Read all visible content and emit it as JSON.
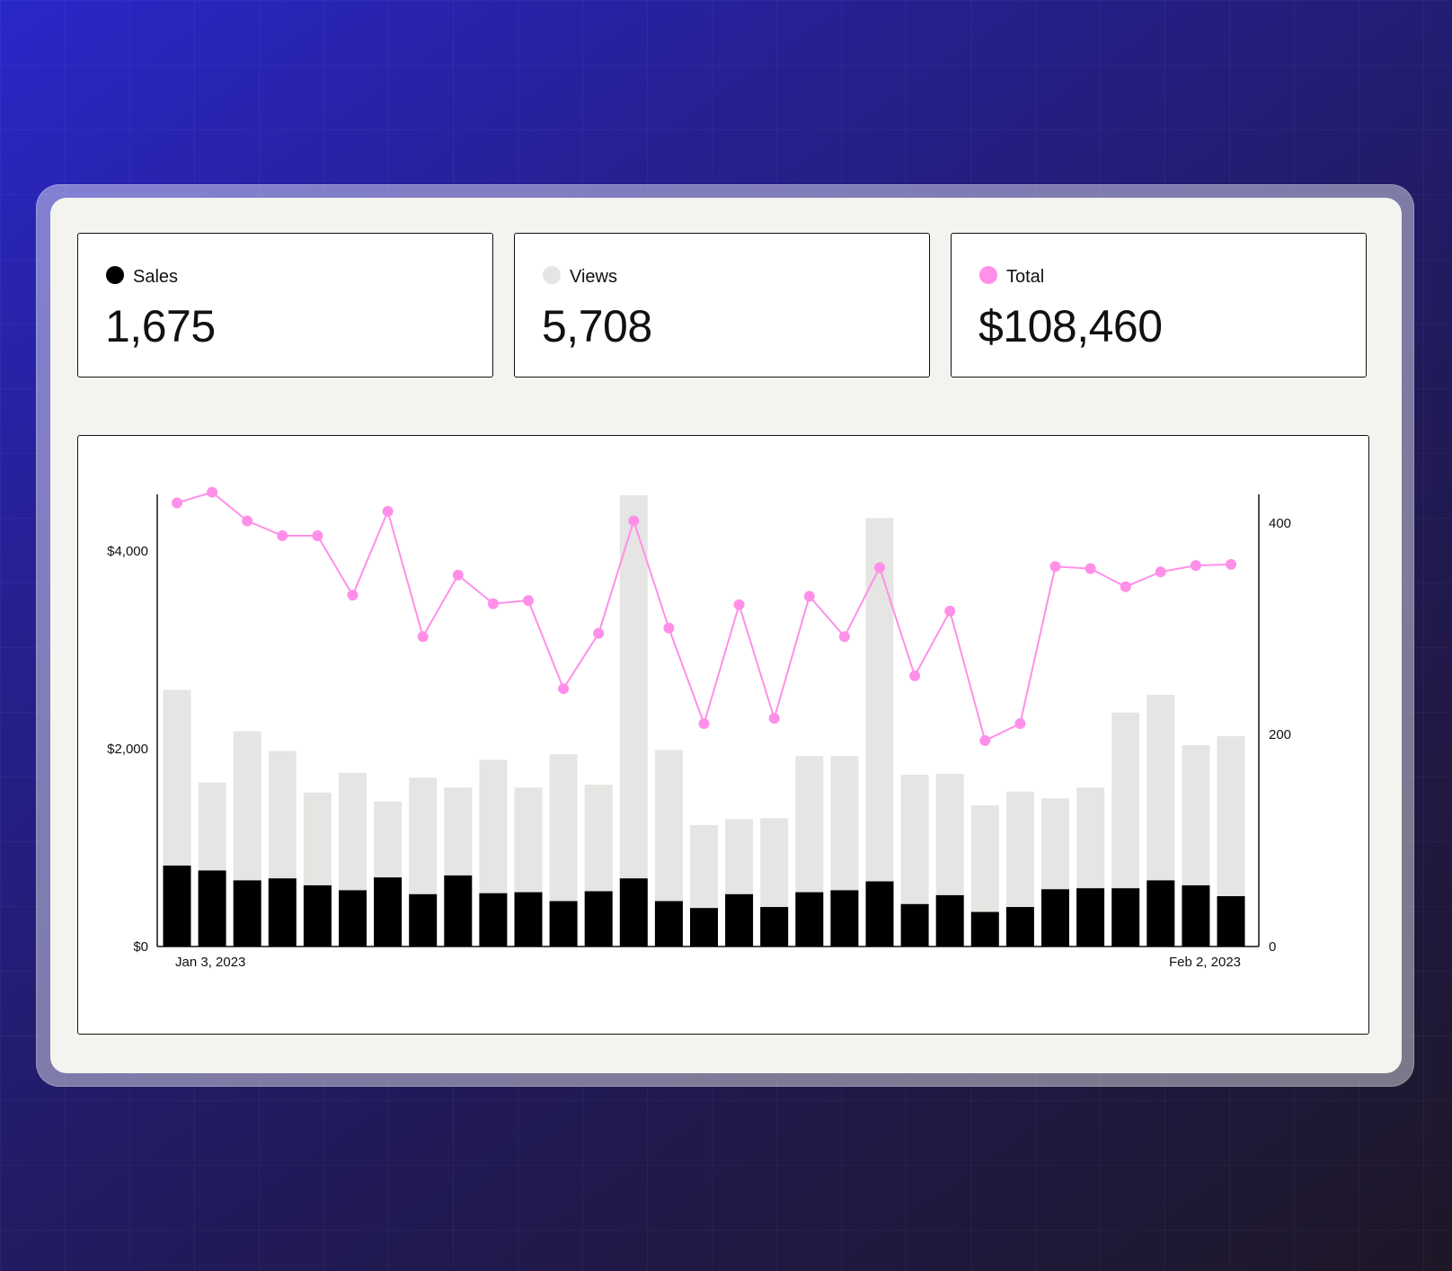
{
  "colors": {
    "sales": "#000000",
    "views": "#e5e5e3",
    "total": "#ff8fe9",
    "card_border": "#111111",
    "panel_bg": "#f3f3ef"
  },
  "stats": {
    "sales": {
      "label": "Sales",
      "value": "1,675",
      "icon": "filled-circle"
    },
    "views": {
      "label": "Views",
      "value": "5,708",
      "icon": "filled-circle"
    },
    "total": {
      "label": "Total",
      "value": "$108,460",
      "icon": "filled-circle"
    }
  },
  "chart": {
    "left_axis_labels": [
      "$0",
      "$2,000",
      "$4,000"
    ],
    "right_axis_labels": [
      "0",
      "200",
      "400"
    ],
    "x_start_label": "Jan 3, 2023",
    "x_end_label": "Feb 2, 2023"
  },
  "chart_data": {
    "type": "bar",
    "x": [
      "Jan 3, 2023",
      "",
      "",
      "",
      "",
      "",
      "",
      "",
      "",
      "",
      "",
      "",
      "",
      "",
      "",
      "",
      "",
      "",
      "",
      "",
      "",
      "",
      "",
      "",
      "",
      "",
      "",
      "",
      "",
      "",
      "Feb 2, 2023"
    ],
    "ylim_left": [
      0,
      4580
    ],
    "ylim_right": [
      0,
      426
    ],
    "series": [
      {
        "name": "Views",
        "type": "bar",
        "axis": "left",
        "values": [
          2600,
          1660,
          2180,
          1980,
          1560,
          1760,
          1470,
          1710,
          1610,
          1890,
          1610,
          1950,
          1640,
          4570,
          1990,
          1230,
          1290,
          1300,
          1930,
          1930,
          4340,
          1740,
          1750,
          1430,
          1570,
          1500,
          1610,
          2370,
          2550,
          2040,
          2130
        ]
      },
      {
        "name": "Sales",
        "type": "bar",
        "axis": "left",
        "values": [
          820,
          770,
          670,
          690,
          620,
          570,
          700,
          530,
          720,
          540,
          550,
          460,
          560,
          690,
          460,
          390,
          530,
          400,
          550,
          570,
          660,
          430,
          520,
          350,
          400,
          580,
          590,
          590,
          670,
          620,
          510
        ]
      },
      {
        "name": "Total",
        "type": "line",
        "axis": "right",
        "values": [
          418,
          428,
          401,
          387,
          387,
          331,
          410,
          292,
          350,
          323,
          326,
          243,
          295,
          401,
          300,
          210,
          322,
          215,
          330,
          292,
          357,
          255,
          316,
          194,
          210,
          358,
          356,
          339,
          353,
          359,
          360
        ]
      }
    ]
  }
}
